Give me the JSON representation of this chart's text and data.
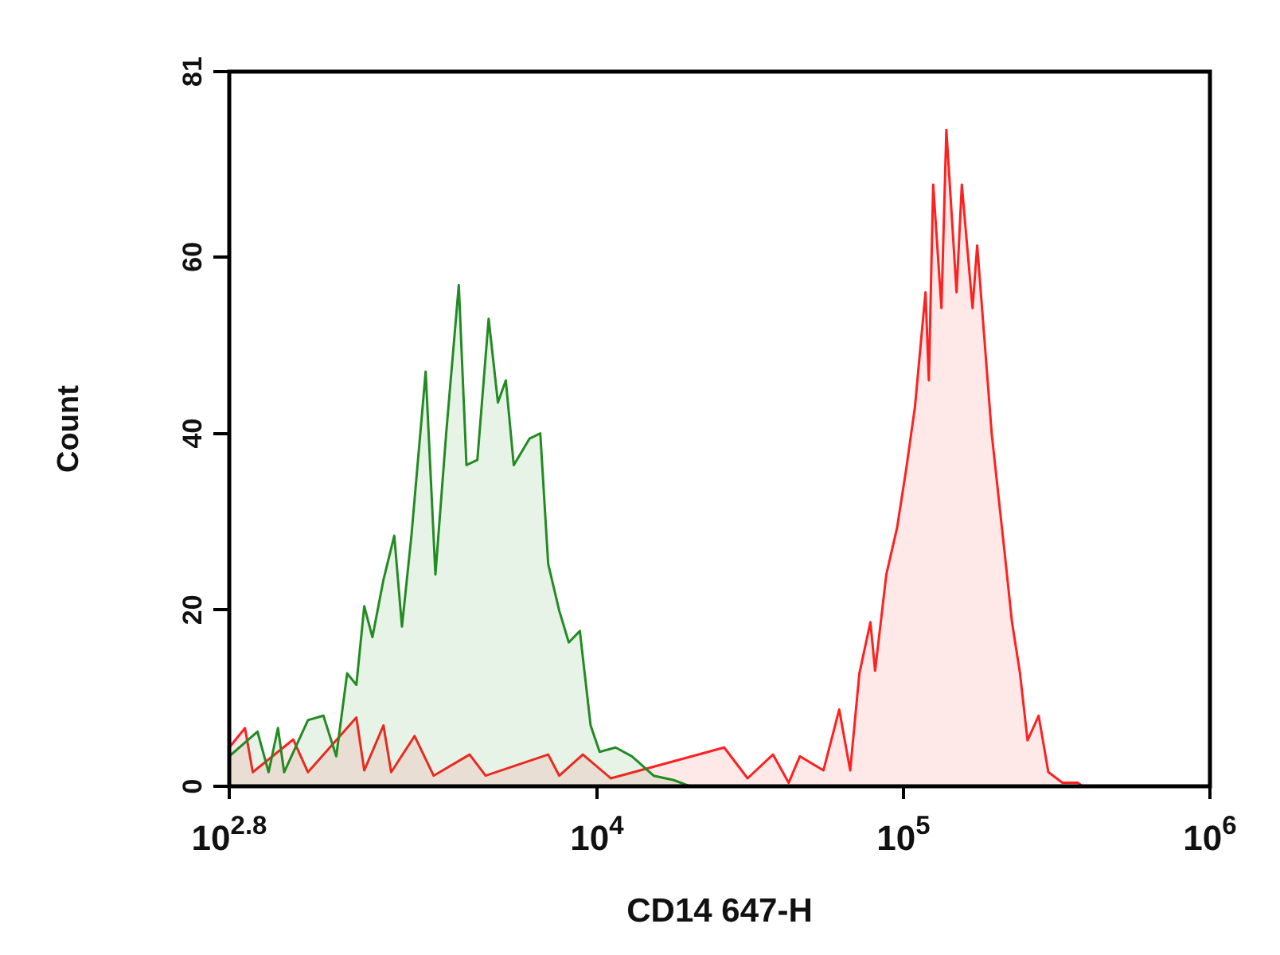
{
  "chart_data": {
    "type": "area",
    "xlabel": "CD14 647-H",
    "ylabel": "Count",
    "log": "x",
    "xlim": [
      631,
      1000000
    ],
    "xticks": [
      {
        "value": 631,
        "label": "10$^{2.8}$"
      },
      {
        "value": 10000,
        "label": "10$^{4}$"
      },
      {
        "value": 100000,
        "label": "10$^{5}$"
      },
      {
        "value": 1000000,
        "label": "10$^{6}$"
      }
    ],
    "ylim": [
      0,
      81
    ],
    "yticks": [
      0,
      20,
      40,
      60,
      81
    ],
    "grid": false,
    "legend": false,
    "series": [
      {
        "color": "#228b22",
        "x": [
          631,
          780,
          848,
          910,
          953,
          1140,
          1280,
          1410,
          1530,
          1640,
          1740,
          1850,
          2010,
          2180,
          2310,
          2480,
          2760,
          2970,
          3220,
          3540,
          3750,
          4070,
          4430,
          4750,
          5040,
          5350,
          6020,
          6530,
          6930,
          7530,
          8090,
          8790,
          9530,
          10200,
          11500,
          13000,
          15300,
          17800,
          20100
        ],
        "values": [
          3.4,
          6.2,
          1.6,
          6.6,
          1.6,
          7.5,
          8,
          3.4,
          12.8,
          11.5,
          20.4,
          16.9,
          23.4,
          28.4,
          18.1,
          28.4,
          47,
          24,
          40,
          56.8,
          36.4,
          37,
          53,
          43.5,
          46,
          36.4,
          39.4,
          40,
          25.2,
          19.9,
          16.3,
          17.6,
          6.9,
          3.9,
          4.4,
          3.4,
          1.2,
          0.7,
          0
        ]
      },
      {
        "color": "#ff2020",
        "x": [
          631,
          710,
          753,
          1020,
          1140,
          1640,
          1740,
          2010,
          2130,
          2540,
          2930,
          3840,
          4330,
          6930,
          7530,
          8990,
          11100,
          26000,
          31000,
          37500,
          42200,
          45900,
          54800,
          61700,
          67000,
          71800,
          78000,
          80800,
          87900,
          95300,
          102000,
          109000,
          118000,
          121000,
          125000,
          133000,
          138000,
          149000,
          155000,
          168000,
          174000,
          194000,
          213000,
          226000,
          240000,
          254000,
          276000,
          297000,
          330000,
          371000,
          384000
        ],
        "values": [
          4.4,
          6.6,
          1.6,
          5.3,
          1.6,
          7.8,
          1.8,
          6.9,
          1.6,
          5.7,
          1.2,
          3.6,
          1.2,
          3.6,
          1.2,
          3.6,
          0.9,
          4.4,
          0.9,
          3.6,
          0.4,
          3.4,
          1.8,
          8.7,
          1.8,
          12.8,
          18.6,
          13.1,
          24,
          29.3,
          35.9,
          43,
          56,
          46,
          68.2,
          54.2,
          74.4,
          56,
          68.2,
          54.2,
          61.3,
          40,
          27,
          18.6,
          12.8,
          5.2,
          8,
          1.6,
          0.4,
          0.4,
          0
        ]
      }
    ]
  }
}
